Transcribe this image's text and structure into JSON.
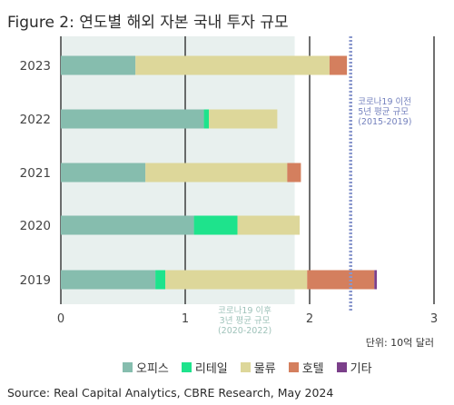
{
  "title": "Figure 2: 연도별 해외 자본 국내 투자 규모",
  "source": "Source: Real Capital Analytics, CBRE Research, May 2024",
  "unit_label": "단위: 10억 달러",
  "annotations": {
    "pre_covid": [
      "코로나19 이전",
      "5년 평균 규모",
      "(2015-2019)"
    ],
    "post_covid": [
      "코로나19 이후",
      "3년 평균 규모",
      "(2020-2022)"
    ]
  },
  "colors": {
    "office": "#86bdae",
    "retail": "#1ee38c",
    "logistics": "#ddd79a",
    "hotel": "#d47f5e",
    "other": "#7b3f8a",
    "shade": "#e8f0ee",
    "grid": "#222222",
    "avg_line": "#8896cc"
  },
  "chart_data": {
    "type": "bar",
    "orientation": "horizontal",
    "stacked": true,
    "categories": [
      "2023",
      "2022",
      "2021",
      "2020",
      "2019"
    ],
    "series": [
      {
        "name": "오피스",
        "color_key": "office",
        "values": [
          0.6,
          1.15,
          0.68,
          1.07,
          0.76
        ]
      },
      {
        "name": "리테일",
        "color_key": "retail",
        "values": [
          0,
          0.04,
          0,
          0.35,
          0.08
        ]
      },
      {
        "name": "물류",
        "color_key": "logistics",
        "values": [
          1.56,
          0.55,
          1.14,
          0.5,
          1.14
        ]
      },
      {
        "name": "호텔",
        "color_key": "hotel",
        "values": [
          0.14,
          0,
          0.11,
          0,
          0.54
        ]
      },
      {
        "name": "기타",
        "color_key": "other",
        "values": [
          0,
          0,
          0,
          0,
          0.02
        ]
      }
    ],
    "xlim": [
      0,
      3
    ],
    "xticks": [
      "0",
      "1",
      "2",
      "3"
    ],
    "pre_covid_avg": 2.33,
    "post_covid_avg": 1.88,
    "legend_position": "bottom"
  }
}
